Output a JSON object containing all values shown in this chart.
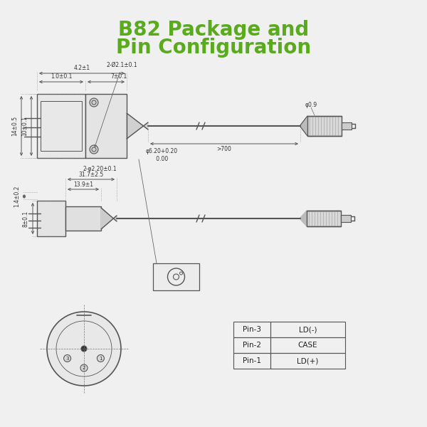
{
  "title_line1": "B82 Package and",
  "title_line2": "Pin Configuration",
  "title_color": "#5aaa1e",
  "title_fontsize": 20,
  "bg_color": "#f0f0f0",
  "draw_color": "#555555",
  "dim_color": "#333333",
  "table_data": [
    [
      "Pin-1",
      "LD(+)"
    ],
    [
      "Pin-2",
      "CASE"
    ],
    [
      "Pin-3",
      "LD(-)"
    ]
  ],
  "dim_labels_top": {
    "w1": "1.0±0.1",
    "w2": "4.2±1",
    "w3": "7±0.1",
    "hole": "2-Ø2.1±0.1",
    "h1": "14±0.5",
    "h2": "10±0.1",
    "hole_bot": "2-φ2.20±0.1",
    "fiber_d": "φ0.9",
    "length": ">700"
  },
  "dim_labels_bot": {
    "h_side": "1.4±0.2",
    "d_side": "8±0.1",
    "w1": "13.9±1",
    "w2": "31.7±2.5",
    "hole_d": "φ6.20+0.20\n      0.00"
  }
}
